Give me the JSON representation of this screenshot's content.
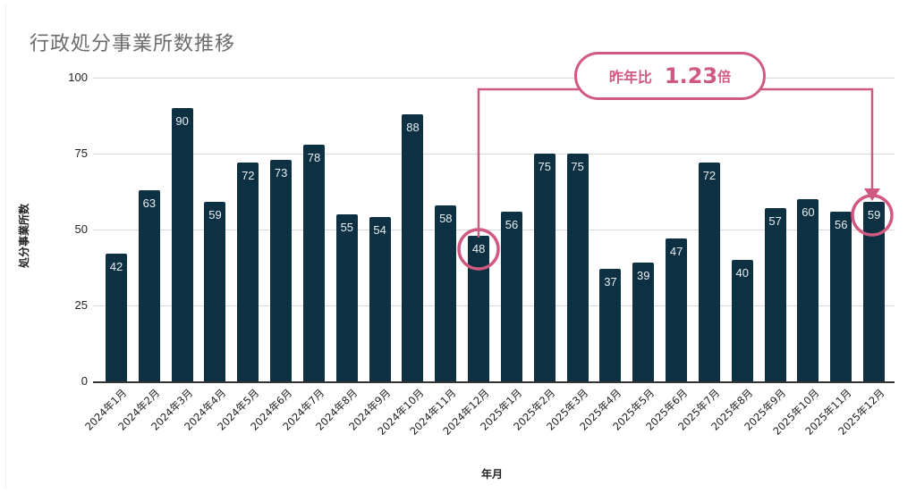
{
  "title": "行政処分事業所数推移",
  "axes": {
    "y_label": "処分事業所数",
    "x_label": "年月",
    "y_ticks": [
      "100",
      "75",
      "50",
      "25",
      "0"
    ]
  },
  "callout": {
    "label": "昨年比",
    "value": "1.23",
    "unit": "倍",
    "from_category": "2024年12月",
    "to_category": "2025年12月"
  },
  "colors": {
    "bar": "#0d3142",
    "accent": "#d05a7f",
    "grid": "#d9d9d9"
  },
  "chart_data": {
    "type": "bar",
    "title": "行政処分事業所数推移",
    "xlabel": "年月",
    "ylabel": "処分事業所数",
    "ylim": [
      0,
      100
    ],
    "yticks": [
      0,
      25,
      50,
      75,
      100
    ],
    "grid": true,
    "legend": "none",
    "categories": [
      "2024年1月",
      "2024年2月",
      "2024年3月",
      "2024年4月",
      "2024年5月",
      "2024年6月",
      "2024年7月",
      "2024年8月",
      "2024年9月",
      "2024年10月",
      "2024年11月",
      "2024年12月",
      "2025年1月",
      "2025年2月",
      "2025年3月",
      "2025年4月",
      "2025年5月",
      "2025年6月",
      "2025年7月",
      "2025年8月",
      "2025年9月",
      "2025年10月",
      "2025年11月",
      "2025年12月"
    ],
    "values": [
      42,
      63,
      90,
      59,
      72,
      73,
      78,
      55,
      54,
      88,
      58,
      48,
      56,
      75,
      75,
      37,
      39,
      47,
      72,
      40,
      57,
      60,
      56,
      59
    ],
    "annotations": [
      {
        "type": "circle",
        "category": "2024年12月",
        "value": 48
      },
      {
        "type": "circle",
        "category": "2025年12月",
        "value": 59
      },
      {
        "type": "arrow-callout",
        "text": "昨年比 1.23倍",
        "from": "2024年12月",
        "to": "2025年12月"
      }
    ]
  }
}
